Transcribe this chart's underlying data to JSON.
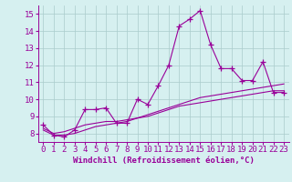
{
  "x": [
    0,
    1,
    2,
    3,
    4,
    5,
    6,
    7,
    8,
    9,
    10,
    11,
    12,
    13,
    14,
    15,
    16,
    17,
    18,
    19,
    20,
    21,
    22,
    23
  ],
  "y_main": [
    8.5,
    7.9,
    7.8,
    8.2,
    9.4,
    9.4,
    9.5,
    8.6,
    8.6,
    10.0,
    9.7,
    10.8,
    12.0,
    14.3,
    14.7,
    15.2,
    13.2,
    11.8,
    11.8,
    11.1,
    11.1,
    12.2,
    10.4,
    10.4
  ],
  "y_trend1": [
    8.3,
    8.0,
    8.1,
    8.3,
    8.5,
    8.6,
    8.7,
    8.7,
    8.8,
    8.9,
    9.1,
    9.3,
    9.5,
    9.7,
    9.9,
    10.1,
    10.2,
    10.3,
    10.4,
    10.5,
    10.6,
    10.7,
    10.8,
    10.9
  ],
  "y_trend2": [
    8.2,
    7.9,
    7.9,
    8.0,
    8.2,
    8.4,
    8.5,
    8.6,
    8.7,
    8.9,
    9.0,
    9.2,
    9.4,
    9.6,
    9.7,
    9.8,
    9.9,
    10.0,
    10.1,
    10.2,
    10.3,
    10.4,
    10.5,
    10.5
  ],
  "line_color": "#990099",
  "bg_color": "#d6f0f0",
  "grid_color": "#aacccc",
  "xlabel": "Windchill (Refroidissement éolien,°C)",
  "ylim": [
    7.5,
    15.5
  ],
  "xlim": [
    -0.5,
    23.5
  ],
  "yticks": [
    8,
    9,
    10,
    11,
    12,
    13,
    14,
    15
  ],
  "xticks": [
    0,
    1,
    2,
    3,
    4,
    5,
    6,
    7,
    8,
    9,
    10,
    11,
    12,
    13,
    14,
    15,
    16,
    17,
    18,
    19,
    20,
    21,
    22,
    23
  ],
  "marker": "+",
  "markersize": 4,
  "linewidth": 0.8,
  "xlabel_fontsize": 6.5,
  "tick_fontsize": 6.5
}
